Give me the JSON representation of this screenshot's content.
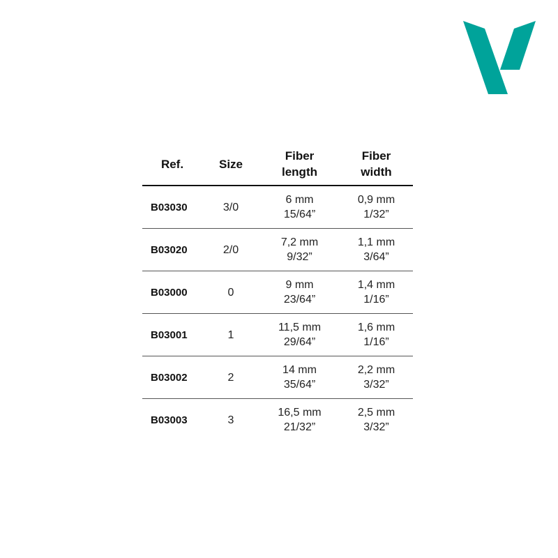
{
  "brand": {
    "color": "#00a39a",
    "logo": "V-logo"
  },
  "table": {
    "headers": [
      [
        "Ref."
      ],
      [
        "Size"
      ],
      [
        "Fiber",
        "length"
      ],
      [
        "Fiber",
        "width"
      ]
    ],
    "rows": [
      {
        "ref": "B03030",
        "size": "3/0",
        "length_mm": "6 mm",
        "length_in": "15/64”",
        "width_mm": "0,9 mm",
        "width_in": "1/32”"
      },
      {
        "ref": "B03020",
        "size": "2/0",
        "length_mm": "7,2 mm",
        "length_in": "9/32”",
        "width_mm": "1,1 mm",
        "width_in": "3/64”"
      },
      {
        "ref": "B03000",
        "size": "0",
        "length_mm": "9 mm",
        "length_in": "23/64”",
        "width_mm": "1,4 mm",
        "width_in": "1/16”"
      },
      {
        "ref": "B03001",
        "size": "1",
        "length_mm": "11,5 mm",
        "length_in": "29/64”",
        "width_mm": "1,6 mm",
        "width_in": "1/16”"
      },
      {
        "ref": "B03002",
        "size": "2",
        "length_mm": "14 mm",
        "length_in": "35/64”",
        "width_mm": "2,2 mm",
        "width_in": "3/32”"
      },
      {
        "ref": "B03003",
        "size": "3",
        "length_mm": "16,5 mm",
        "length_in": "21/32”",
        "width_mm": "2,5 mm",
        "width_in": "3/32”"
      }
    ]
  }
}
